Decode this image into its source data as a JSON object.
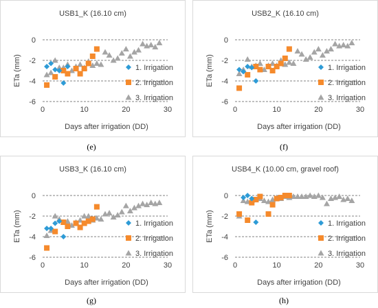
{
  "colors": {
    "irr1": "#2e9bd6",
    "irr2": "#f58a2c",
    "irr3": "#a5a5a5"
  },
  "chart_data": [
    {
      "type": "scatter",
      "title": "USB1_K (16.10 cm)",
      "caption": "(e)",
      "xlabel": "Days after irrigation (DD)",
      "ylabel": "ETa (mm)",
      "xlim": [
        0,
        30
      ],
      "ylim": [
        -6,
        0
      ],
      "xticks": [
        0,
        10,
        20,
        30
      ],
      "yticks": [
        0,
        -2,
        -4,
        -6
      ],
      "grid": "horizontal dashed",
      "legend_position": "right",
      "series": [
        {
          "name": "1.  Irrigation",
          "marker": "diamond",
          "x": [
            1,
            2,
            3,
            4,
            5,
            6
          ],
          "y": [
            -2.6,
            -2.3,
            -2.9,
            -3.0,
            -4.2,
            -2.6
          ]
        },
        {
          "name": "2.  Irrigation",
          "marker": "square",
          "x": [
            1,
            3,
            5,
            6,
            8,
            9,
            10,
            11,
            12,
            13
          ],
          "y": [
            -4.4,
            -3.6,
            -3.0,
            -3.3,
            -2.8,
            -3.3,
            -2.8,
            -2.3,
            -1.6,
            -0.9
          ]
        },
        {
          "name": "3.  Irrigation",
          "marker": "triangle",
          "x": [
            1,
            2,
            3,
            4,
            5,
            6,
            7,
            8,
            9,
            10,
            11,
            12,
            13,
            14,
            15,
            16,
            17,
            18,
            19,
            20,
            21,
            22,
            23,
            24,
            25,
            26,
            27,
            28
          ],
          "y": [
            -3.4,
            -3.2,
            -2.0,
            -2.7,
            -2.7,
            -2.4,
            -3.0,
            -2.6,
            -2.4,
            -2.7,
            -2.1,
            -2.5,
            -2.3,
            -2.4,
            -1.2,
            -1.5,
            -2.0,
            -1.8,
            -1.3,
            -0.9,
            -1.6,
            -1.2,
            -1.0,
            -0.4,
            -0.6,
            -0.5,
            -0.7,
            -0.3
          ]
        }
      ]
    },
    {
      "type": "scatter",
      "title": "USB2_K (16.10 cm)",
      "caption": "(f)",
      "xlabel": "Days after irrigation (DD)",
      "ylabel": "ETa (mm)",
      "xlim": [
        0,
        30
      ],
      "ylim": [
        -6,
        0
      ],
      "xticks": [
        0,
        10,
        20,
        30
      ],
      "yticks": [
        0,
        -2,
        -4,
        -6
      ],
      "grid": "horizontal dashed",
      "legend_position": "right",
      "series": [
        {
          "name": "1.  Irrigation",
          "marker": "diamond",
          "x": [
            1,
            2,
            3,
            4,
            5
          ],
          "y": [
            -2.9,
            -3.1,
            -2.6,
            -2.7,
            -4.0
          ]
        },
        {
          "name": "2.  Irrigation",
          "marker": "square",
          "x": [
            1,
            3,
            5,
            6,
            8,
            9,
            10,
            11,
            12,
            13
          ],
          "y": [
            -4.7,
            -3.4,
            -2.6,
            -2.9,
            -2.6,
            -3.0,
            -2.6,
            -2.3,
            -1.8,
            -0.9
          ]
        },
        {
          "name": "3.  Irrigation",
          "marker": "triangle",
          "x": [
            1,
            2,
            3,
            4,
            5,
            6,
            7,
            8,
            9,
            10,
            11,
            12,
            13,
            14,
            15,
            16,
            17,
            18,
            19,
            20,
            21,
            22,
            23,
            24,
            25,
            26,
            27,
            28
          ],
          "y": [
            -3.3,
            -2.9,
            -1.9,
            -2.6,
            -2.5,
            -2.3,
            -2.9,
            -2.5,
            -2.3,
            -2.5,
            -2.0,
            -2.4,
            -2.2,
            -2.3,
            -1.1,
            -1.4,
            -1.9,
            -1.7,
            -1.2,
            -0.9,
            -1.5,
            -1.1,
            -0.9,
            -0.4,
            -0.6,
            -0.5,
            -0.6,
            -0.3
          ]
        }
      ]
    },
    {
      "type": "scatter",
      "title": "USB3_K (16.10 cm)",
      "caption": "(g)",
      "xlabel": "Days after irrigation (DD)",
      "ylabel": "ETa (mm)",
      "xlim": [
        0,
        30
      ],
      "ylim": [
        -6,
        0
      ],
      "xticks": [
        0,
        10,
        20,
        30
      ],
      "yticks": [
        0,
        -2,
        -4,
        -6
      ],
      "grid": "horizontal dashed",
      "legend_position": "right",
      "series": [
        {
          "name": "1.  Irrigation",
          "marker": "diamond",
          "x": [
            1,
            2,
            3,
            4,
            5
          ],
          "y": [
            -3.2,
            -3.2,
            -2.7,
            -2.5,
            -4.0
          ]
        },
        {
          "name": "2.  Irrigation",
          "marker": "square",
          "x": [
            1,
            3,
            5,
            6,
            8,
            9,
            10,
            11,
            12,
            13
          ],
          "y": [
            -5.1,
            -3.5,
            -2.6,
            -3.0,
            -2.7,
            -3.1,
            -2.7,
            -2.5,
            -2.3,
            -1.1
          ]
        },
        {
          "name": "3.  Irrigation",
          "marker": "triangle",
          "x": [
            1,
            2,
            3,
            4,
            5,
            6,
            7,
            8,
            9,
            10,
            11,
            12,
            13,
            14,
            15,
            16,
            17,
            18,
            19,
            20,
            21,
            22,
            23,
            24,
            25,
            26,
            27,
            28
          ],
          "y": [
            -3.9,
            -3.4,
            -2.0,
            -2.3,
            -2.6,
            -2.5,
            -2.9,
            -2.6,
            -2.4,
            -2.0,
            -2.0,
            -2.4,
            -2.2,
            -2.3,
            -1.8,
            -1.7,
            -2.1,
            -1.9,
            -1.6,
            -1.0,
            -1.5,
            -1.2,
            -1.0,
            -0.8,
            -0.9,
            -0.7,
            -0.8,
            -0.7
          ]
        }
      ]
    },
    {
      "type": "scatter",
      "title": "USB4_K (10.00 cm, gravel roof)",
      "caption": "(h)",
      "xlabel": "Days after irrigation (DD)",
      "ylabel": "ETa (mm)",
      "xlim": [
        0,
        30
      ],
      "ylim": [
        -6,
        0
      ],
      "xticks": [
        0,
        10,
        20,
        30
      ],
      "yticks": [
        0,
        -2,
        -4,
        -6
      ],
      "grid": "horizontal dashed",
      "legend_position": "right",
      "series": [
        {
          "name": "1.  Irrigation",
          "marker": "diamond",
          "x": [
            2,
            3,
            4,
            5
          ],
          "y": [
            -0.2,
            0.0,
            -0.3,
            -2.6
          ]
        },
        {
          "name": "2.  Irrigation",
          "marker": "square",
          "x": [
            1,
            3,
            4,
            5,
            6,
            8,
            9,
            10,
            11,
            12,
            13
          ],
          "y": [
            -1.8,
            -2.4,
            -0.7,
            -0.4,
            -0.1,
            -1.8,
            -0.9,
            -0.3,
            -0.2,
            0.0,
            0.0
          ]
        },
        {
          "name": "3.  Irrigation",
          "marker": "triangle",
          "x": [
            1,
            2,
            3,
            4,
            5,
            6,
            7,
            8,
            9,
            10,
            11,
            12,
            13,
            14,
            15,
            16,
            17,
            18,
            19,
            20,
            21,
            22,
            23,
            24,
            25,
            26,
            27,
            28
          ],
          "y": [
            -2.0,
            -0.5,
            -0.6,
            -0.5,
            -0.4,
            -0.3,
            -0.5,
            -0.6,
            -0.4,
            -0.2,
            -0.3,
            -0.1,
            -0.2,
            -0.1,
            -0.1,
            -0.1,
            -0.1,
            0.0,
            -0.1,
            0.0,
            -0.2,
            -0.8,
            -0.3,
            -0.2,
            -0.1,
            -0.4,
            -0.3,
            -0.5
          ]
        }
      ]
    }
  ]
}
